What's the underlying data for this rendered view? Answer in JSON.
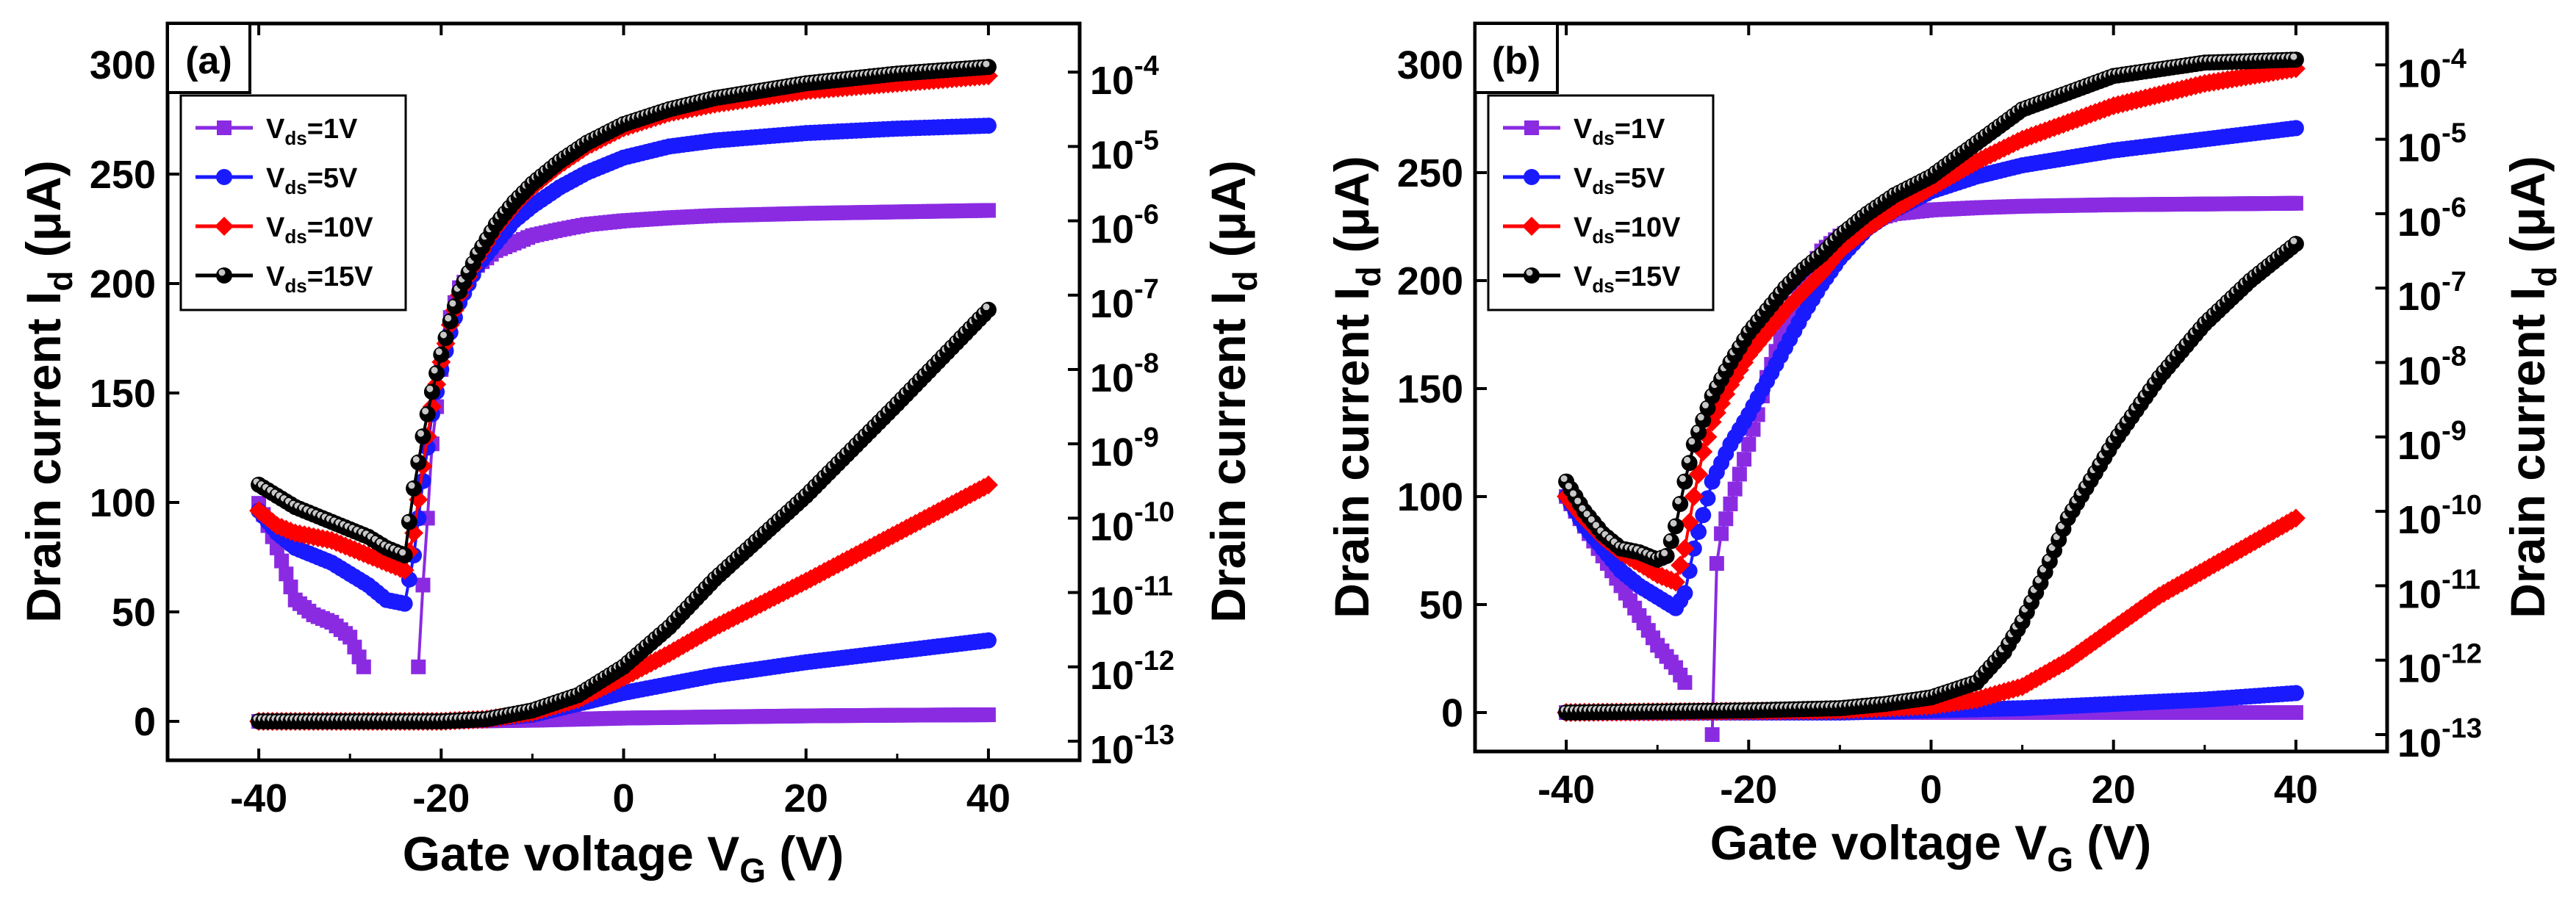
{
  "chart_data": [
    {
      "type": "line",
      "panel_label": "(a)",
      "xlabel": "Gate voltage V",
      "xlabel_sub": "G",
      "xlabel_unit": " (V)",
      "ylabel_left": "Drain current I",
      "ylabel_left_sub": "d",
      "ylabel_left_unit": " (μA)",
      "ylabel_right": "Drain current I",
      "ylabel_right_sub": "d",
      "ylabel_right_unit": " (μA)",
      "xlim": [
        -50,
        50
      ],
      "ylim_left": [
        -20,
        320
      ],
      "ylim_right_log": [
        -13.1,
        -3.3
      ],
      "xticks": [
        -40,
        -20,
        0,
        20,
        40
      ],
      "xtick_labels": [
        "-40",
        "-20",
        "0",
        "20",
        "40"
      ],
      "yticks_left": [
        0,
        50,
        100,
        150,
        200,
        250,
        300
      ],
      "ytick_labels_left": [
        "0",
        "50",
        "100",
        "150",
        "200",
        "250",
        "300"
      ],
      "yticks_right_exp": [
        -13,
        -12,
        -11,
        -10,
        -9,
        -8,
        -7,
        -6,
        -5,
        -4
      ],
      "ytick_labels_right": [
        {
          "base": "10",
          "exp": "-13"
        },
        {
          "base": "10",
          "exp": "-12"
        },
        {
          "base": "10",
          "exp": "-11"
        },
        {
          "base": "10",
          "exp": "-10"
        },
        {
          "base": "10",
          "exp": "-9"
        },
        {
          "base": "10",
          "exp": "-8"
        },
        {
          "base": "10",
          "exp": "-7"
        },
        {
          "base": "10",
          "exp": "-6"
        },
        {
          "base": "10",
          "exp": "-5"
        },
        {
          "base": "10",
          "exp": "-4"
        }
      ],
      "legend_position": "upper-left",
      "series": [
        {
          "name": "V_ds=1V",
          "label_main": "V",
          "label_sub": "ds",
          "label_rest": "=1V",
          "color": "#8a2be2",
          "marker": "square",
          "linear": {
            "x": [
              -40,
              -30,
              -20,
              -10,
              0,
              10,
              20,
              30,
              40
            ],
            "y": [
              0,
              0,
              0,
              0.5,
              1.5,
              2,
              2.5,
              2.8,
              3
            ]
          },
          "log": {
            "x": [
              -40,
              -38,
              -36,
              -34,
              -32,
              -30,
              -28.5
            ],
            "y": [
              -9.8,
              -10.4,
              -11.1,
              -11.3,
              -11.4,
              -11.6,
              -12.0
            ],
            "x2": [
              -22.5,
              -22,
              -21.5,
              -21,
              -20,
              -19,
              -18,
              -16,
              -14,
              -12,
              -10,
              -7,
              -4,
              0,
              5,
              10,
              20,
              30,
              40
            ],
            "y2": [
              -12.0,
              -10.9,
              -10,
              -9,
              -8.0,
              -7.3,
              -6.9,
              -6.6,
              -6.4,
              -6.3,
              -6.2,
              -6.12,
              -6.05,
              -6.0,
              -5.96,
              -5.93,
              -5.9,
              -5.88,
              -5.86
            ]
          }
        },
        {
          "name": "V_ds=5V",
          "label_main": "V",
          "label_sub": "ds",
          "label_rest": "=5V",
          "color": "#1a1aff",
          "marker": "circle",
          "linear": {
            "x": [
              -40,
              -25,
              -20,
              -15,
              -10,
              -5,
              0,
              5,
              10,
              20,
              30,
              40
            ],
            "y": [
              0,
              0,
              0,
              1,
              3,
              8,
              13,
              17,
              21,
              27,
              32,
              37
            ]
          },
          "log": {
            "x": [
              -40,
              -38,
              -36,
              -34,
              -32,
              -30,
              -28,
              -26,
              -24,
              -23,
              -22,
              -21,
              -20,
              -19,
              -18,
              -16,
              -14,
              -12,
              -10,
              -7,
              -4,
              0,
              5,
              10,
              20,
              30,
              40
            ],
            "y": [
              -9.9,
              -10.2,
              -10.4,
              -10.5,
              -10.6,
              -10.75,
              -10.9,
              -11.1,
              -11.15,
              -10.5,
              -9.5,
              -8.6,
              -8.0,
              -7.5,
              -7.1,
              -6.6,
              -6.3,
              -6.0,
              -5.8,
              -5.55,
              -5.35,
              -5.15,
              -5.0,
              -4.92,
              -4.82,
              -4.76,
              -4.72
            ]
          }
        },
        {
          "name": "V_ds=10V",
          "label_main": "V",
          "label_sub": "ds",
          "label_rest": "=10V",
          "color": "#ff0000",
          "marker": "diamond",
          "linear": {
            "x": [
              -40,
              -25,
              -20,
              -15,
              -10,
              -5,
              0,
              5,
              10,
              20,
              30,
              40
            ],
            "y": [
              0,
              0,
              0,
              1,
              4,
              10,
              20,
              31,
              43,
              64,
              86,
              108
            ]
          },
          "log": {
            "x": [
              -40,
              -38,
              -36,
              -34,
              -32,
              -30,
              -28,
              -26,
              -24,
              -23,
              -22,
              -21,
              -20,
              -19,
              -18,
              -16,
              -14,
              -12,
              -10,
              -7,
              -4,
              0,
              5,
              10,
              20,
              30,
              40
            ],
            "y": [
              -9.9,
              -10.1,
              -10.2,
              -10.25,
              -10.3,
              -10.4,
              -10.5,
              -10.6,
              -10.7,
              -10.2,
              -9.3,
              -8.5,
              -7.9,
              -7.4,
              -7.0,
              -6.5,
              -6.1,
              -5.8,
              -5.55,
              -5.25,
              -5.0,
              -4.75,
              -4.55,
              -4.43,
              -4.25,
              -4.15,
              -4.05
            ]
          }
        },
        {
          "name": "V_ds=15V",
          "label_main": "V",
          "label_sub": "ds",
          "label_rest": "=15V",
          "color": "#000000",
          "marker": "ball",
          "linear": {
            "x": [
              -40,
              -25,
              -20,
              -15,
              -10,
              -5,
              0,
              5,
              10,
              20,
              30,
              40
            ],
            "y": [
              0,
              0,
              0,
              1,
              5,
              12,
              25,
              43,
              65,
              103,
              145,
              188
            ]
          },
          "log": {
            "x": [
              -40,
              -38,
              -36,
              -34,
              -32,
              -30,
              -28,
              -26,
              -24,
              -23,
              -22,
              -21,
              -20,
              -19,
              -18,
              -16,
              -14,
              -12,
              -10,
              -7,
              -4,
              0,
              5,
              10,
              20,
              30,
              40
            ],
            "y": [
              -9.55,
              -9.7,
              -9.85,
              -9.95,
              -10.05,
              -10.15,
              -10.25,
              -10.4,
              -10.5,
              -9.6,
              -8.9,
              -8.3,
              -7.8,
              -7.35,
              -6.95,
              -6.45,
              -6.05,
              -5.75,
              -5.5,
              -5.2,
              -4.95,
              -4.7,
              -4.5,
              -4.35,
              -4.15,
              -4.02,
              -3.93
            ]
          }
        }
      ]
    },
    {
      "type": "line",
      "panel_label": "(b)",
      "xlabel": "Gate voltage V",
      "xlabel_sub": "G",
      "xlabel_unit": " (V)",
      "ylabel_left": "Drain current I",
      "ylabel_left_sub": "d",
      "ylabel_left_unit": " (μA)",
      "ylabel_right": "Drain current I",
      "ylabel_right_sub": "d",
      "ylabel_right_unit": " (μA)",
      "xlim": [
        -50,
        50
      ],
      "ylim_left": [
        -20,
        320
      ],
      "ylim_right_log": [
        -13.1,
        -3.3
      ],
      "xticks": [
        -40,
        -20,
        0,
        20,
        40
      ],
      "xtick_labels": [
        "-40",
        "-20",
        "0",
        "20",
        "40"
      ],
      "yticks_left": [
        0,
        50,
        100,
        150,
        200,
        250,
        300
      ],
      "ytick_labels_left": [
        "0",
        "50",
        "100",
        "150",
        "200",
        "250",
        "300"
      ],
      "yticks_right_exp": [
        -13,
        -12,
        -11,
        -10,
        -9,
        -8,
        -7,
        -6,
        -5,
        -4
      ],
      "ytick_labels_right": [
        {
          "base": "10",
          "exp": "-13"
        },
        {
          "base": "10",
          "exp": "-12"
        },
        {
          "base": "10",
          "exp": "-11"
        },
        {
          "base": "10",
          "exp": "-10"
        },
        {
          "base": "10",
          "exp": "-9"
        },
        {
          "base": "10",
          "exp": "-8"
        },
        {
          "base": "10",
          "exp": "-7"
        },
        {
          "base": "10",
          "exp": "-6"
        },
        {
          "base": "10",
          "exp": "-5"
        },
        {
          "base": "10",
          "exp": "-4"
        }
      ],
      "legend_position": "upper-left",
      "series": [
        {
          "name": "V_ds=1V",
          "label_main": "V",
          "label_sub": "ds",
          "label_rest": "=1V",
          "color": "#8a2be2",
          "marker": "square",
          "linear": {
            "x": [
              -40,
              -30,
              -20,
              -10,
              0,
              10,
              20,
              30,
              40
            ],
            "y": [
              0,
              0,
              0,
              0,
              0,
              0,
              0,
              0,
              0
            ]
          },
          "log": {
            "x": [
              -40,
              -38,
              -36,
              -34,
              -32,
              -30,
              -28,
              -27
            ],
            "y": [
              -9.8,
              -10.2,
              -10.6,
              -11.0,
              -11.4,
              -11.8,
              -12.1,
              -12.3
            ],
            "x2": [
              -24,
              -23.5,
              -23,
              -22,
              -21,
              -20,
              -19,
              -18,
              -16,
              -14,
              -12,
              -10,
              -7,
              -4,
              0,
              5,
              10,
              20,
              30,
              40
            ],
            "y2": [
              -13.0,
              -10.7,
              -10.3,
              -9.9,
              -9.5,
              -9.1,
              -8.7,
              -8.2,
              -7.5,
              -6.9,
              -6.5,
              -6.3,
              -6.1,
              -6.0,
              -5.95,
              -5.92,
              -5.9,
              -5.88,
              -5.87,
              -5.86
            ]
          }
        },
        {
          "name": "V_ds=5V",
          "label_main": "V",
          "label_sub": "ds",
          "label_rest": "=5V",
          "color": "#1a1aff",
          "marker": "circle",
          "linear": {
            "x": [
              -40,
              -20,
              -10,
              0,
              10,
              20,
              30,
              40
            ],
            "y": [
              0,
              0,
              0,
              1,
              2,
              4,
              6,
              9
            ]
          },
          "log": {
            "x": [
              -40,
              -38,
              -36,
              -34,
              -32,
              -30,
              -28,
              -27,
              -26,
              -24,
              -22,
              -20,
              -18,
              -16,
              -14,
              -12,
              -10,
              -7,
              -4,
              0,
              5,
              10,
              20,
              30,
              40
            ],
            "y": [
              -9.8,
              -10.2,
              -10.5,
              -10.8,
              -11.0,
              -11.15,
              -11.3,
              -11.1,
              -10.5,
              -9.6,
              -9.1,
              -8.7,
              -8.25,
              -7.8,
              -7.35,
              -6.95,
              -6.6,
              -6.2,
              -5.95,
              -5.7,
              -5.5,
              -5.35,
              -5.15,
              -5.0,
              -4.85
            ]
          }
        },
        {
          "name": "V_ds=10V",
          "label_main": "V",
          "label_sub": "ds",
          "label_rest": "=10V",
          "color": "#ff0000",
          "marker": "diamond",
          "linear": {
            "x": [
              -40,
              -10,
              0,
              5,
              10,
              15,
              20,
              25,
              30,
              35,
              40
            ],
            "y": [
              0,
              1,
              3,
              6,
              12,
              24,
              39,
              54,
              66,
              78,
              90
            ]
          },
          "log": {
            "x": [
              -40,
              -38,
              -36,
              -34,
              -32,
              -30,
              -28,
              -27,
              -26,
              -25,
              -24,
              -22,
              -20,
              -18,
              -16,
              -14,
              -12,
              -10,
              -7,
              -4,
              0,
              5,
              10,
              20,
              30,
              40
            ],
            "y": [
              -9.8,
              -10.1,
              -10.35,
              -10.55,
              -10.7,
              -10.85,
              -10.95,
              -10.5,
              -9.8,
              -9.2,
              -8.8,
              -8.3,
              -7.9,
              -7.6,
              -7.3,
              -7.05,
              -6.8,
              -6.5,
              -6.2,
              -5.95,
              -5.65,
              -5.3,
              -5.0,
              -4.55,
              -4.25,
              -4.05
            ]
          }
        },
        {
          "name": "V_ds=15V",
          "label_main": "V",
          "label_sub": "ds",
          "label_rest": "=15V",
          "color": "#000000",
          "marker": "ball",
          "linear": {
            "x": [
              -40,
              -20,
              -10,
              -5,
              0,
              5,
              8,
              10,
              12,
              15,
              20,
              25,
              30,
              35,
              40
            ],
            "y": [
              0,
              1,
              2,
              4,
              7,
              14,
              28,
              42,
              60,
              90,
              125,
              155,
              180,
              200,
              217
            ]
          },
          "log": {
            "x": [
              -40,
              -38,
              -36,
              -34,
              -32,
              -30,
              -29,
              -28,
              -27,
              -26,
              -24,
              -22,
              -20,
              -18,
              -16,
              -14,
              -12,
              -10,
              -7,
              -4,
              0,
              5,
              10,
              20,
              30,
              40
            ],
            "y": [
              -9.6,
              -10.0,
              -10.3,
              -10.5,
              -10.55,
              -10.65,
              -10.6,
              -10.2,
              -9.6,
              -9.1,
              -8.45,
              -8.0,
              -7.6,
              -7.3,
              -7.0,
              -6.75,
              -6.55,
              -6.3,
              -6.0,
              -5.75,
              -5.5,
              -5.05,
              -4.6,
              -4.15,
              -3.97,
              -3.93
            ]
          }
        }
      ]
    }
  ]
}
